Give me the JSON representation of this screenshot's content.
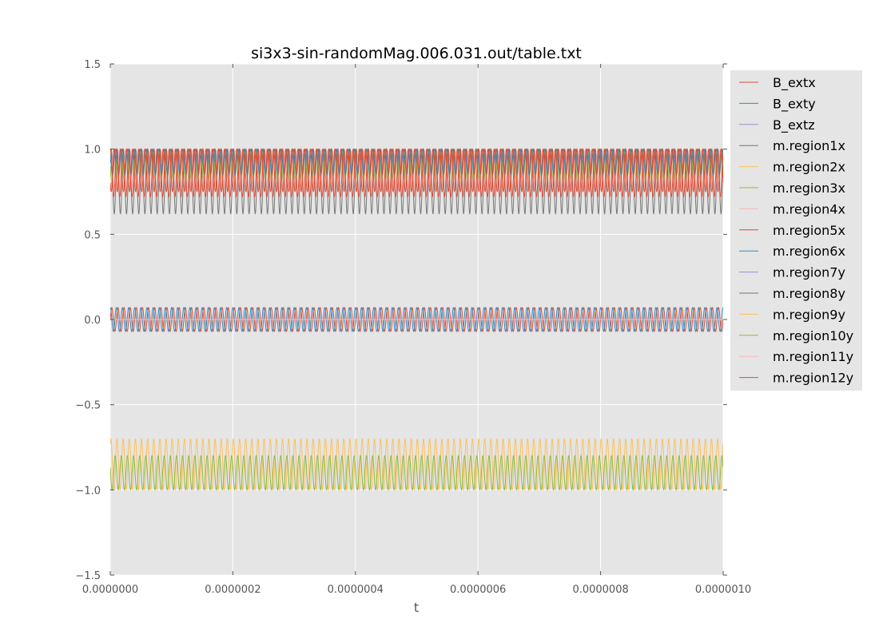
{
  "chart_data": {
    "type": "line",
    "title": "si3x3-sin-randomMag.006.031.out/table.txt",
    "xlabel": "t",
    "ylabel": "",
    "xlim": [
      0,
      1e-06
    ],
    "ylim": [
      -1.5,
      1.5
    ],
    "x_ticks": [
      "0.0000000",
      "0.0000002",
      "0.0000004",
      "0.0000006",
      "0.0000008",
      "0.0000010"
    ],
    "y_ticks": [
      "1.5",
      "1.0",
      "0.5",
      "0.0",
      "−0.5",
      "−1.0",
      "−1.5"
    ],
    "grid": true,
    "legend_position": "outside-right",
    "background": "#e5e5e5",
    "oscillation_cycles": 100,
    "series": [
      {
        "name": "B_extx",
        "color": "#e24a33",
        "band": [
          -0.07,
          0.07
        ],
        "phase": 0.0
      },
      {
        "name": "B_exty",
        "color": "#348abd",
        "band": [
          -0.07,
          0.07
        ],
        "phase": 0.25
      },
      {
        "name": "B_extz",
        "color": "#988ed5",
        "band": [
          0.0,
          0.0
        ],
        "phase": 0.0
      },
      {
        "name": "m.region1x",
        "color": "#777777",
        "band": [
          0.62,
          1.0
        ],
        "phase": 0.1
      },
      {
        "name": "m.region2x",
        "color": "#fbc15e",
        "band": [
          0.85,
          1.0
        ],
        "phase": 0.3
      },
      {
        "name": "m.region3x",
        "color": "#8eba42",
        "band": [
          0.8,
          1.0
        ],
        "phase": 0.5
      },
      {
        "name": "m.region4x",
        "color": "#ffb5b8",
        "band": [
          0.78,
          1.0
        ],
        "phase": 0.7
      },
      {
        "name": "m.region5x",
        "color": "#e24a33",
        "band": [
          0.72,
          1.0
        ],
        "phase": 0.2
      },
      {
        "name": "m.region6x",
        "color": "#348abd",
        "band": [
          0.85,
          1.0
        ],
        "phase": 0.4
      },
      {
        "name": "m.region7y",
        "color": "#988ed5",
        "band": [
          0.0,
          0.0
        ],
        "phase": 0.0
      },
      {
        "name": "m.region8y",
        "color": "#777777",
        "band": [
          0.0,
          0.0
        ],
        "phase": 0.0
      },
      {
        "name": "m.region9y",
        "color": "#fbc15e",
        "band": [
          -1.0,
          -0.7
        ],
        "phase": 0.15
      },
      {
        "name": "m.region10y",
        "color": "#8eba42",
        "band": [
          -1.0,
          -0.8
        ],
        "phase": 0.45
      },
      {
        "name": "m.region11y",
        "color": "#ffb5b8",
        "band": [
          0.0,
          0.0
        ],
        "phase": 0.0
      },
      {
        "name": "m.region12y",
        "color": "#e24a33",
        "band": [
          0.75,
          1.0
        ],
        "phase": 0.6
      }
    ]
  }
}
